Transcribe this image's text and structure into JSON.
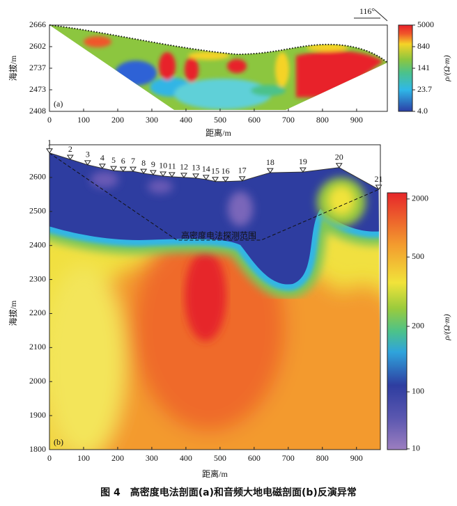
{
  "figure_caption": "图 4　高密度电法剖面(a)和音频大地电磁剖面(b)反演异常",
  "chart_data": [
    {
      "type": "contour",
      "panel_label": "(a)",
      "annotation": "116°",
      "x_label": "距离/m",
      "y_label": "海拔/m",
      "xlim": [
        0,
        990
      ],
      "xticks": [
        0,
        100,
        200,
        300,
        400,
        500,
        600,
        700,
        800,
        900
      ],
      "y_categories": [
        "2408",
        "2473",
        "2737",
        "2602",
        "2666"
      ],
      "colorbar": {
        "label": "ρ/(Ω·m)",
        "scale": "log",
        "lim": [
          4,
          5000
        ],
        "ticks": [
          {
            "value": 4,
            "label": "4.0"
          },
          23.7,
          141,
          840,
          5000
        ]
      }
    },
    {
      "type": "contour",
      "panel_label": "(b)",
      "annotation": "高密度电法探测范围",
      "x_label": "距离/m",
      "y_label": "海拔/m",
      "xlim": [
        0,
        970
      ],
      "xticks": [
        0,
        100,
        200,
        300,
        400,
        500,
        600,
        700,
        800,
        900
      ],
      "ylim": [
        1800,
        2696
      ],
      "yticks": [
        1800,
        1900,
        2000,
        2100,
        2200,
        2300,
        2400,
        2500,
        2600
      ],
      "colorbar": {
        "label": "ρ/(Ω·m)",
        "ticks": [
          10,
          100,
          200,
          500,
          2000
        ]
      },
      "stations": {
        "labels": [
          "1",
          "2",
          "3",
          "4",
          "5",
          "6",
          "7",
          "8",
          "9",
          "10",
          "11",
          "12",
          "13",
          "14",
          "15",
          "16",
          "17",
          "18",
          "19",
          "20",
          "21"
        ],
        "x": [
          0,
          61,
          112,
          155,
          188,
          216,
          245,
          276,
          304,
          333,
          359,
          394,
          429,
          459,
          486,
          516,
          565,
          647,
          743,
          849,
          965
        ],
        "y": [
          2672,
          2653,
          2637,
          2627,
          2620,
          2618,
          2618,
          2612,
          2608,
          2604,
          2602,
          2600,
          2598,
          2594,
          2588,
          2588,
          2590,
          2614,
          2616,
          2629,
          2565
        ]
      }
    }
  ]
}
